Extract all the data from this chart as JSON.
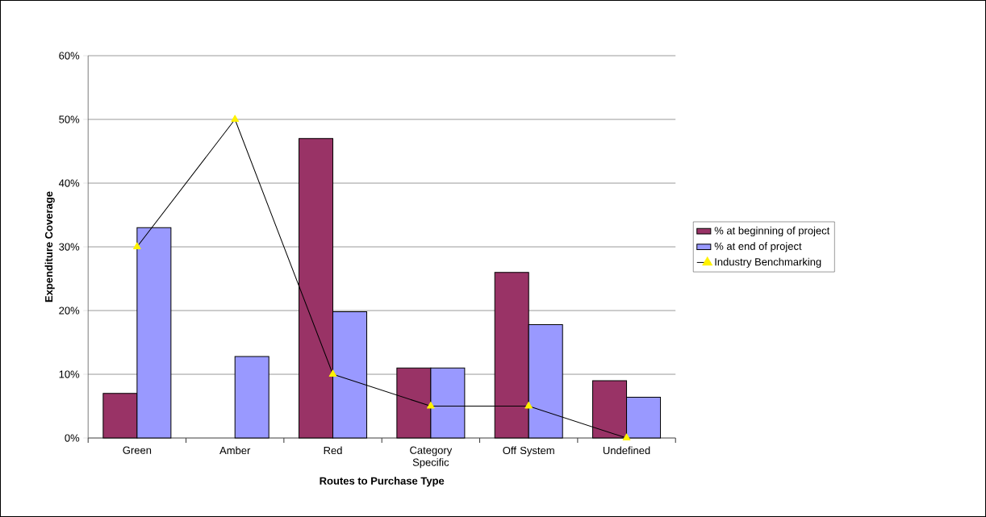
{
  "chart_data": {
    "type": "bar",
    "xlabel": "Routes to Purchase Type",
    "ylabel": "Expenditure Coverage",
    "categories": [
      "Green",
      "Amber",
      "Red",
      "Category Specific",
      "Off System",
      "Undefined"
    ],
    "series": [
      {
        "name": "% at beginning of project",
        "color": "#993366",
        "values": [
          7,
          null,
          47,
          11,
          26,
          9
        ]
      },
      {
        "name": "% at end of project",
        "color": "#9999ff",
        "values": [
          33,
          12.8,
          19.8,
          11,
          17.8,
          6.4
        ]
      },
      {
        "name": "Industry Benchmarking",
        "type": "line",
        "color": "#000000",
        "marker": "triangle",
        "values": [
          30,
          50,
          10,
          5,
          5,
          0
        ]
      }
    ],
    "ylim": [
      0,
      60
    ],
    "yticks": [
      {
        "value": 0,
        "label": "0%"
      },
      {
        "value": 10,
        "label": "10%"
      },
      {
        "value": 20,
        "label": "20%"
      },
      {
        "value": 30,
        "label": "30%"
      },
      {
        "value": 40,
        "label": "40%"
      },
      {
        "value": 50,
        "label": "50%"
      },
      {
        "value": 60,
        "label": "60%"
      }
    ],
    "grid": "y",
    "legend": "right"
  }
}
